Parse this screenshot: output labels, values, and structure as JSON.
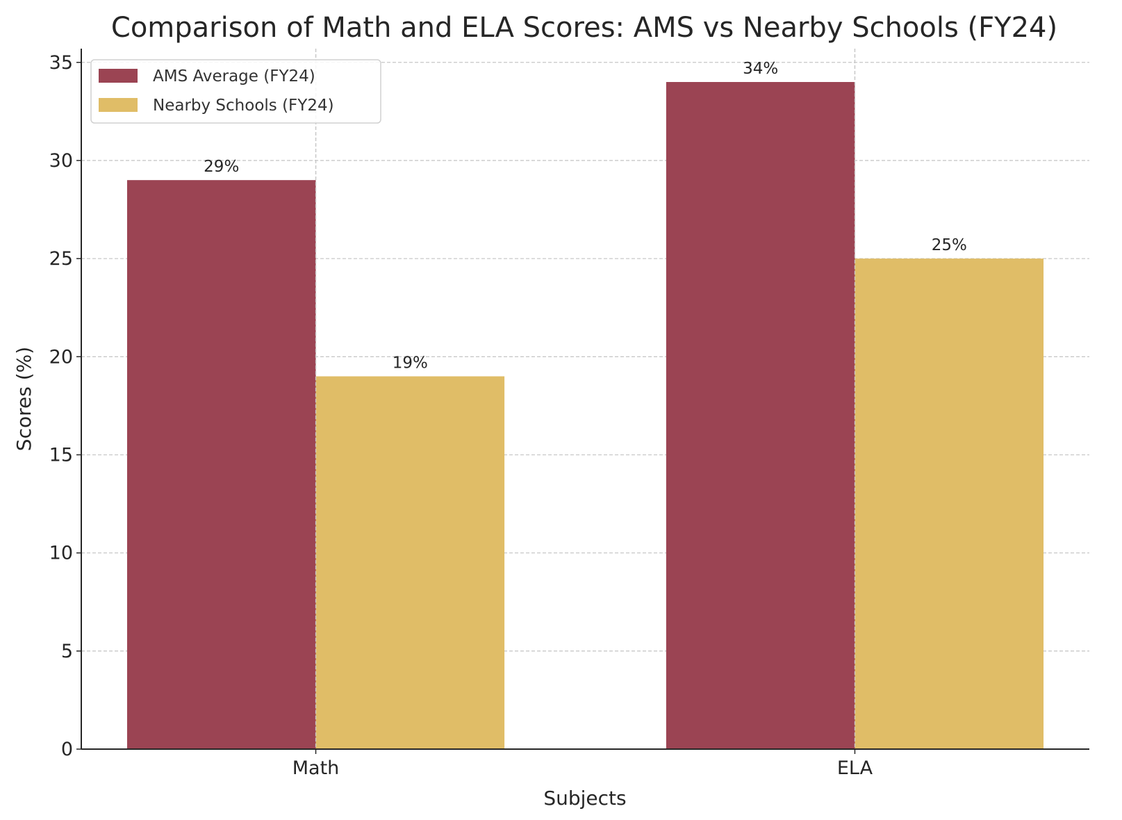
{
  "chart_data": {
    "type": "bar",
    "title": "Comparison of Math and ELA Scores: AMS vs Nearby Schools (FY24)",
    "xlabel": "Subjects",
    "ylabel": "Scores (%)",
    "categories": [
      "Math",
      "ELA"
    ],
    "series": [
      {
        "name": "AMS Average (FY24)",
        "values": [
          29,
          34
        ],
        "labels": [
          "29%",
          "34%"
        ],
        "color": "#9b4453"
      },
      {
        "name": "Nearby Schools (FY24)",
        "values": [
          19,
          25
        ],
        "labels": [
          "19%",
          "25%"
        ],
        "color": "#e0bd67"
      }
    ],
    "ylim": [
      0,
      35.7
    ],
    "yticks": [
      0,
      5,
      10,
      15,
      20,
      25,
      30,
      35
    ],
    "grid": true,
    "legend": "top-left"
  }
}
